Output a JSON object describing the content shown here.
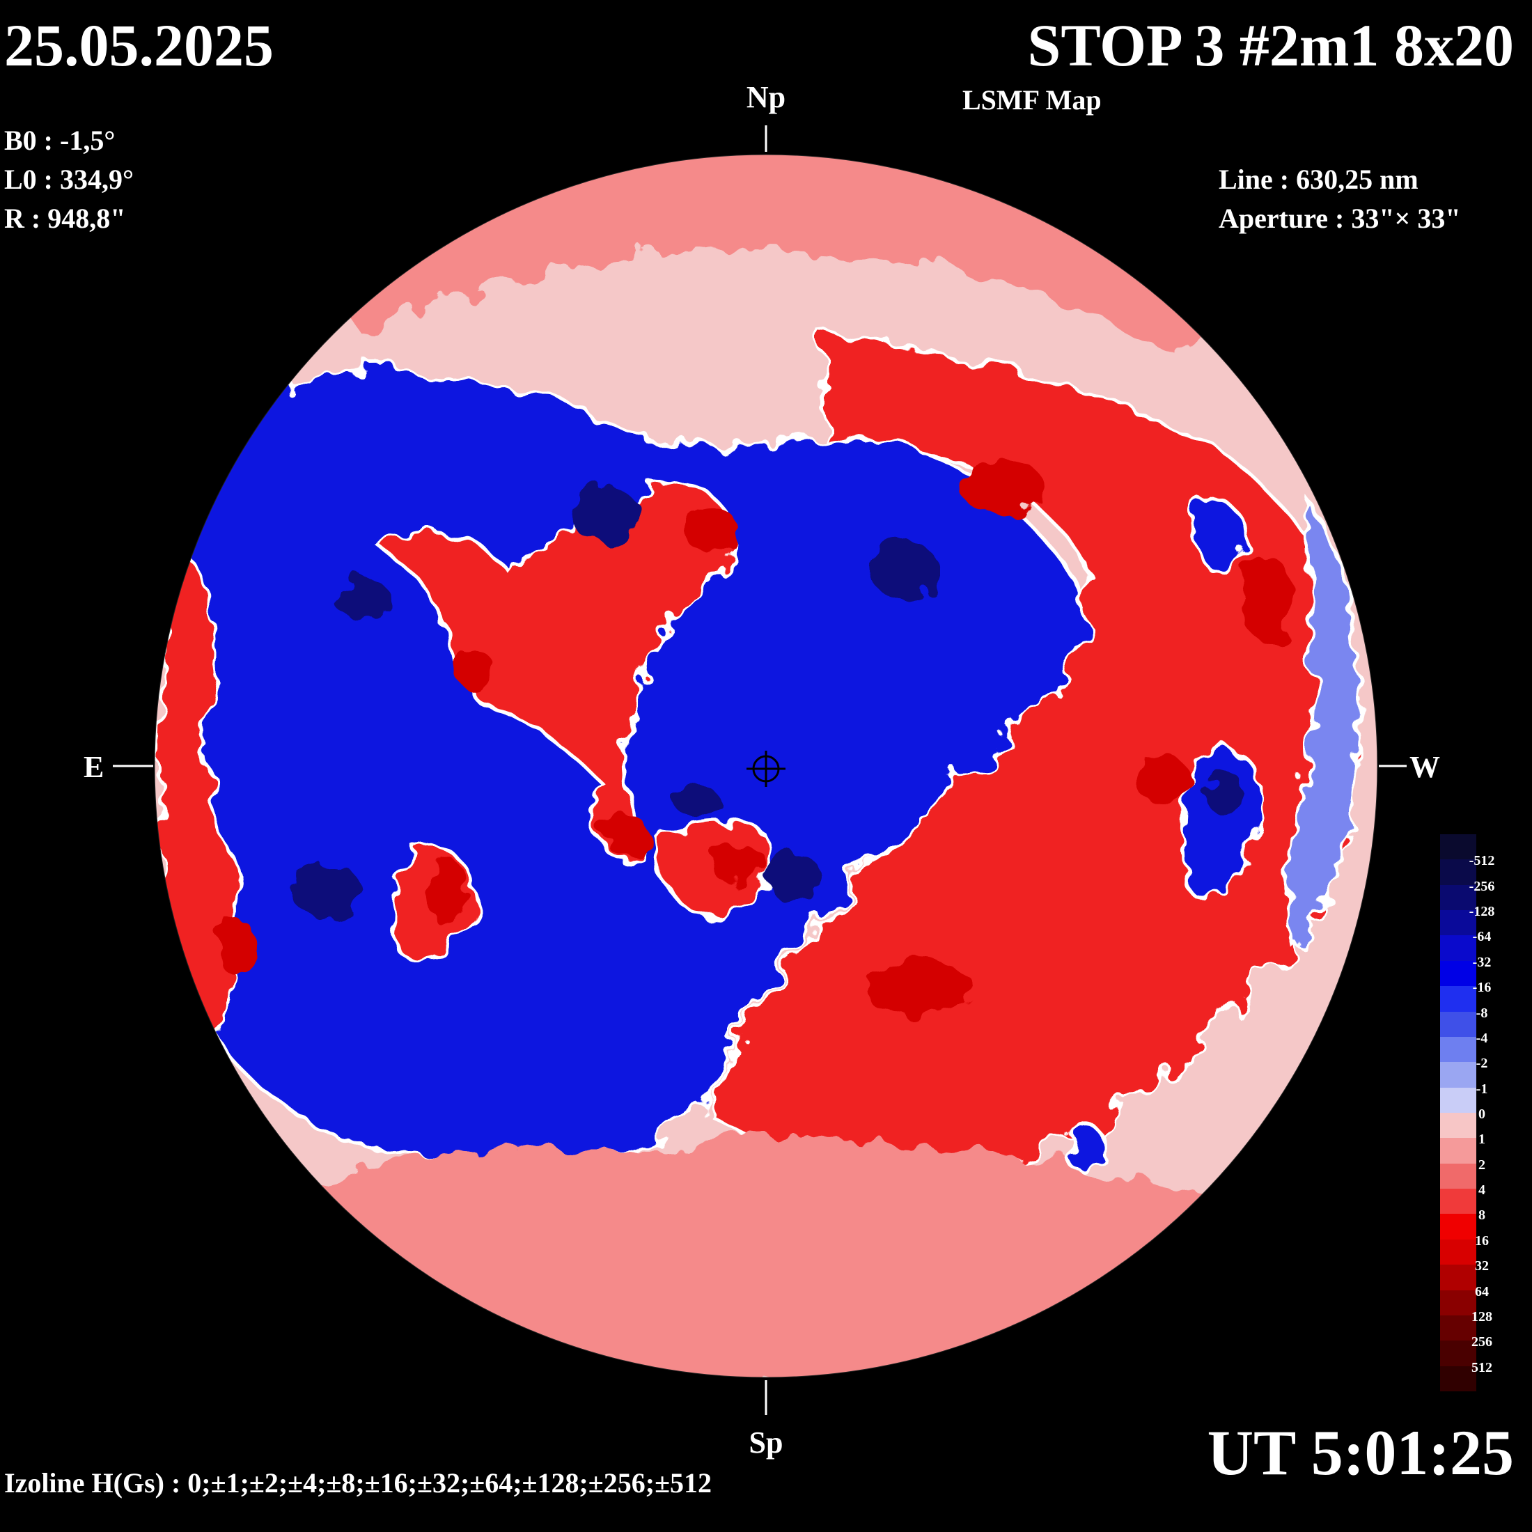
{
  "header": {
    "date": "25.05.2025",
    "title": "STOP 3 #2m1 8x20",
    "subtitle": "LSMF  Map"
  },
  "params": {
    "b0": "B0 : -1,5°",
    "l0": "L0 : 334,9°",
    "r": "R  : 948,8\"",
    "line": "Line :  630,25 nm",
    "aperture": "Aperture : 33\"× 33\""
  },
  "directions": {
    "north": "Np",
    "south": "Sp",
    "east": "E",
    "west": "W"
  },
  "time": "UT 5:01:25",
  "izoline": "Izoline H(Gs) : 0;±1;±2;±4;±8;±16;±32;±64;±128;±256;±512",
  "colorbar": {
    "levels": [
      {
        "label": "-512",
        "color": "#0a0a2e"
      },
      {
        "label": "-256",
        "color": "#0a0a4a"
      },
      {
        "label": "-128",
        "color": "#0a0a70"
      },
      {
        "label": "-64",
        "color": "#0a0a9a"
      },
      {
        "label": "-32",
        "color": "#0a0acc"
      },
      {
        "label": "-16",
        "color": "#0000e6"
      },
      {
        "label": "-8",
        "color": "#1f2ff0"
      },
      {
        "label": "-4",
        "color": "#3f50e8"
      },
      {
        "label": "-2",
        "color": "#6e7ff0"
      },
      {
        "label": "-1",
        "color": "#9aa6f2"
      },
      {
        "label": "0",
        "color": "#c9cdf7"
      },
      {
        "label": "1",
        "color": "#f7c6c6"
      },
      {
        "label": "2",
        "color": "#f59a9a"
      },
      {
        "label": "4",
        "color": "#f06a6a"
      },
      {
        "label": "8",
        "color": "#f03a3a"
      },
      {
        "label": "16",
        "color": "#f00000"
      },
      {
        "label": "32",
        "color": "#d80000"
      },
      {
        "label": "64",
        "color": "#b00000"
      },
      {
        "label": "128",
        "color": "#8a0000"
      },
      {
        "label": "256",
        "color": "#660000"
      },
      {
        "label": "512",
        "color": "#4a0000"
      },
      {
        "label": "",
        "color": "#300000"
      }
    ]
  },
  "map_colors": {
    "positive_strong": "#d40000",
    "positive": "#f02020",
    "positive_weak": "#f58a8a",
    "neutral": "#f5c8c8",
    "negative_weak": "#7a86f0",
    "negative": "#0a14e0",
    "negative_strong": "#08087a",
    "outline": "#ffffff"
  }
}
